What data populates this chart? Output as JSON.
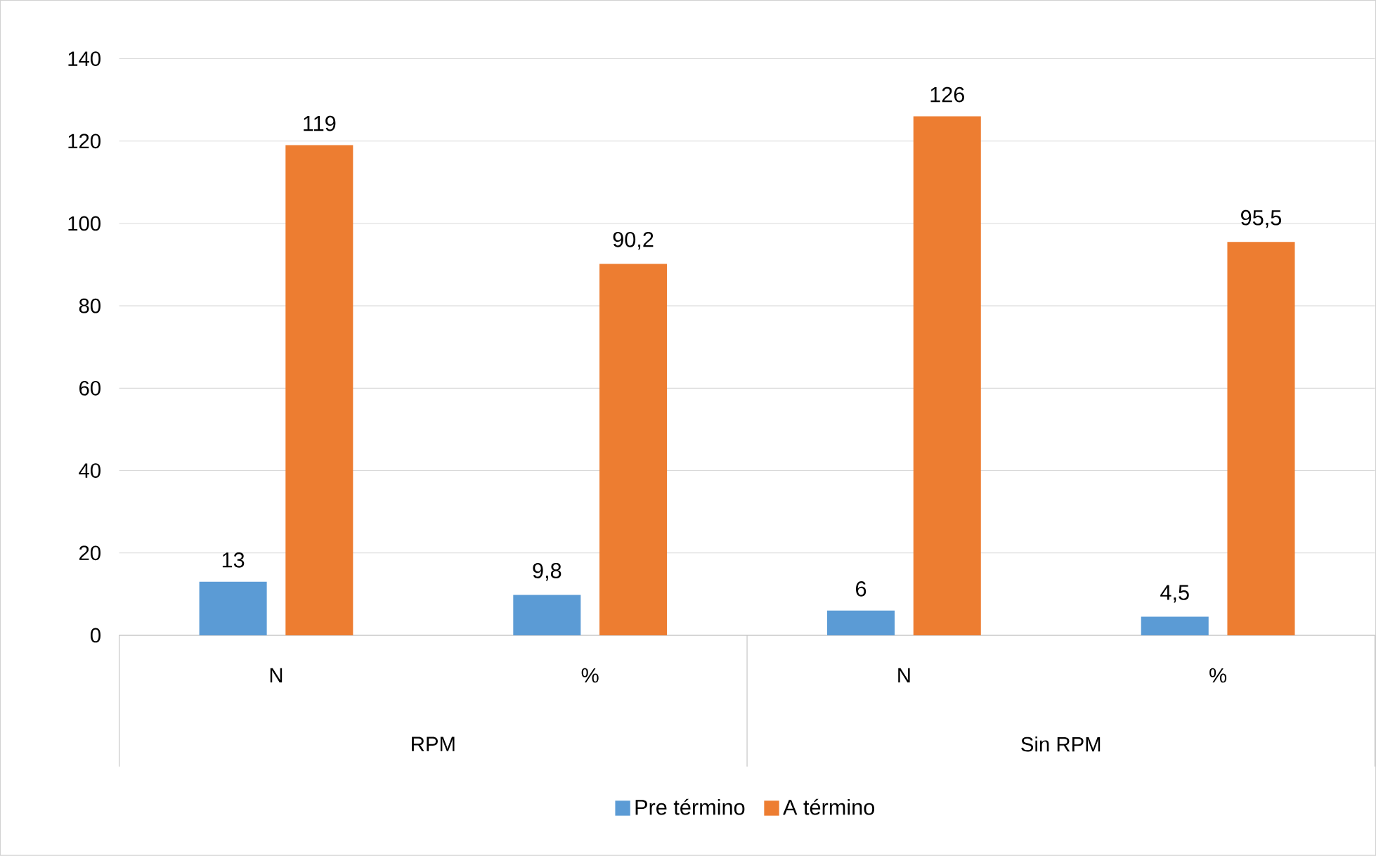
{
  "chart_data": {
    "type": "bar",
    "categories": [
      "N",
      "%",
      "N",
      "%"
    ],
    "series": [
      {
        "name": "Pre término",
        "color": "#5b9bd5",
        "values": [
          13,
          9.8,
          6,
          4.5
        ],
        "value_labels": [
          "13",
          "9,8",
          "6",
          "4,5"
        ]
      },
      {
        "name": "A término",
        "color": "#ed7d31",
        "values": [
          119,
          90.2,
          126,
          95.5
        ],
        "value_labels": [
          "119",
          "90,2",
          "126",
          "95,5"
        ]
      }
    ],
    "annotations": [
      "RPM",
      "Sin RPM"
    ],
    "ylim": [
      0,
      140
    ],
    "yticks": [
      0,
      20,
      40,
      60,
      80,
      100,
      120,
      140
    ],
    "grid": "y",
    "legend": "bottom"
  }
}
